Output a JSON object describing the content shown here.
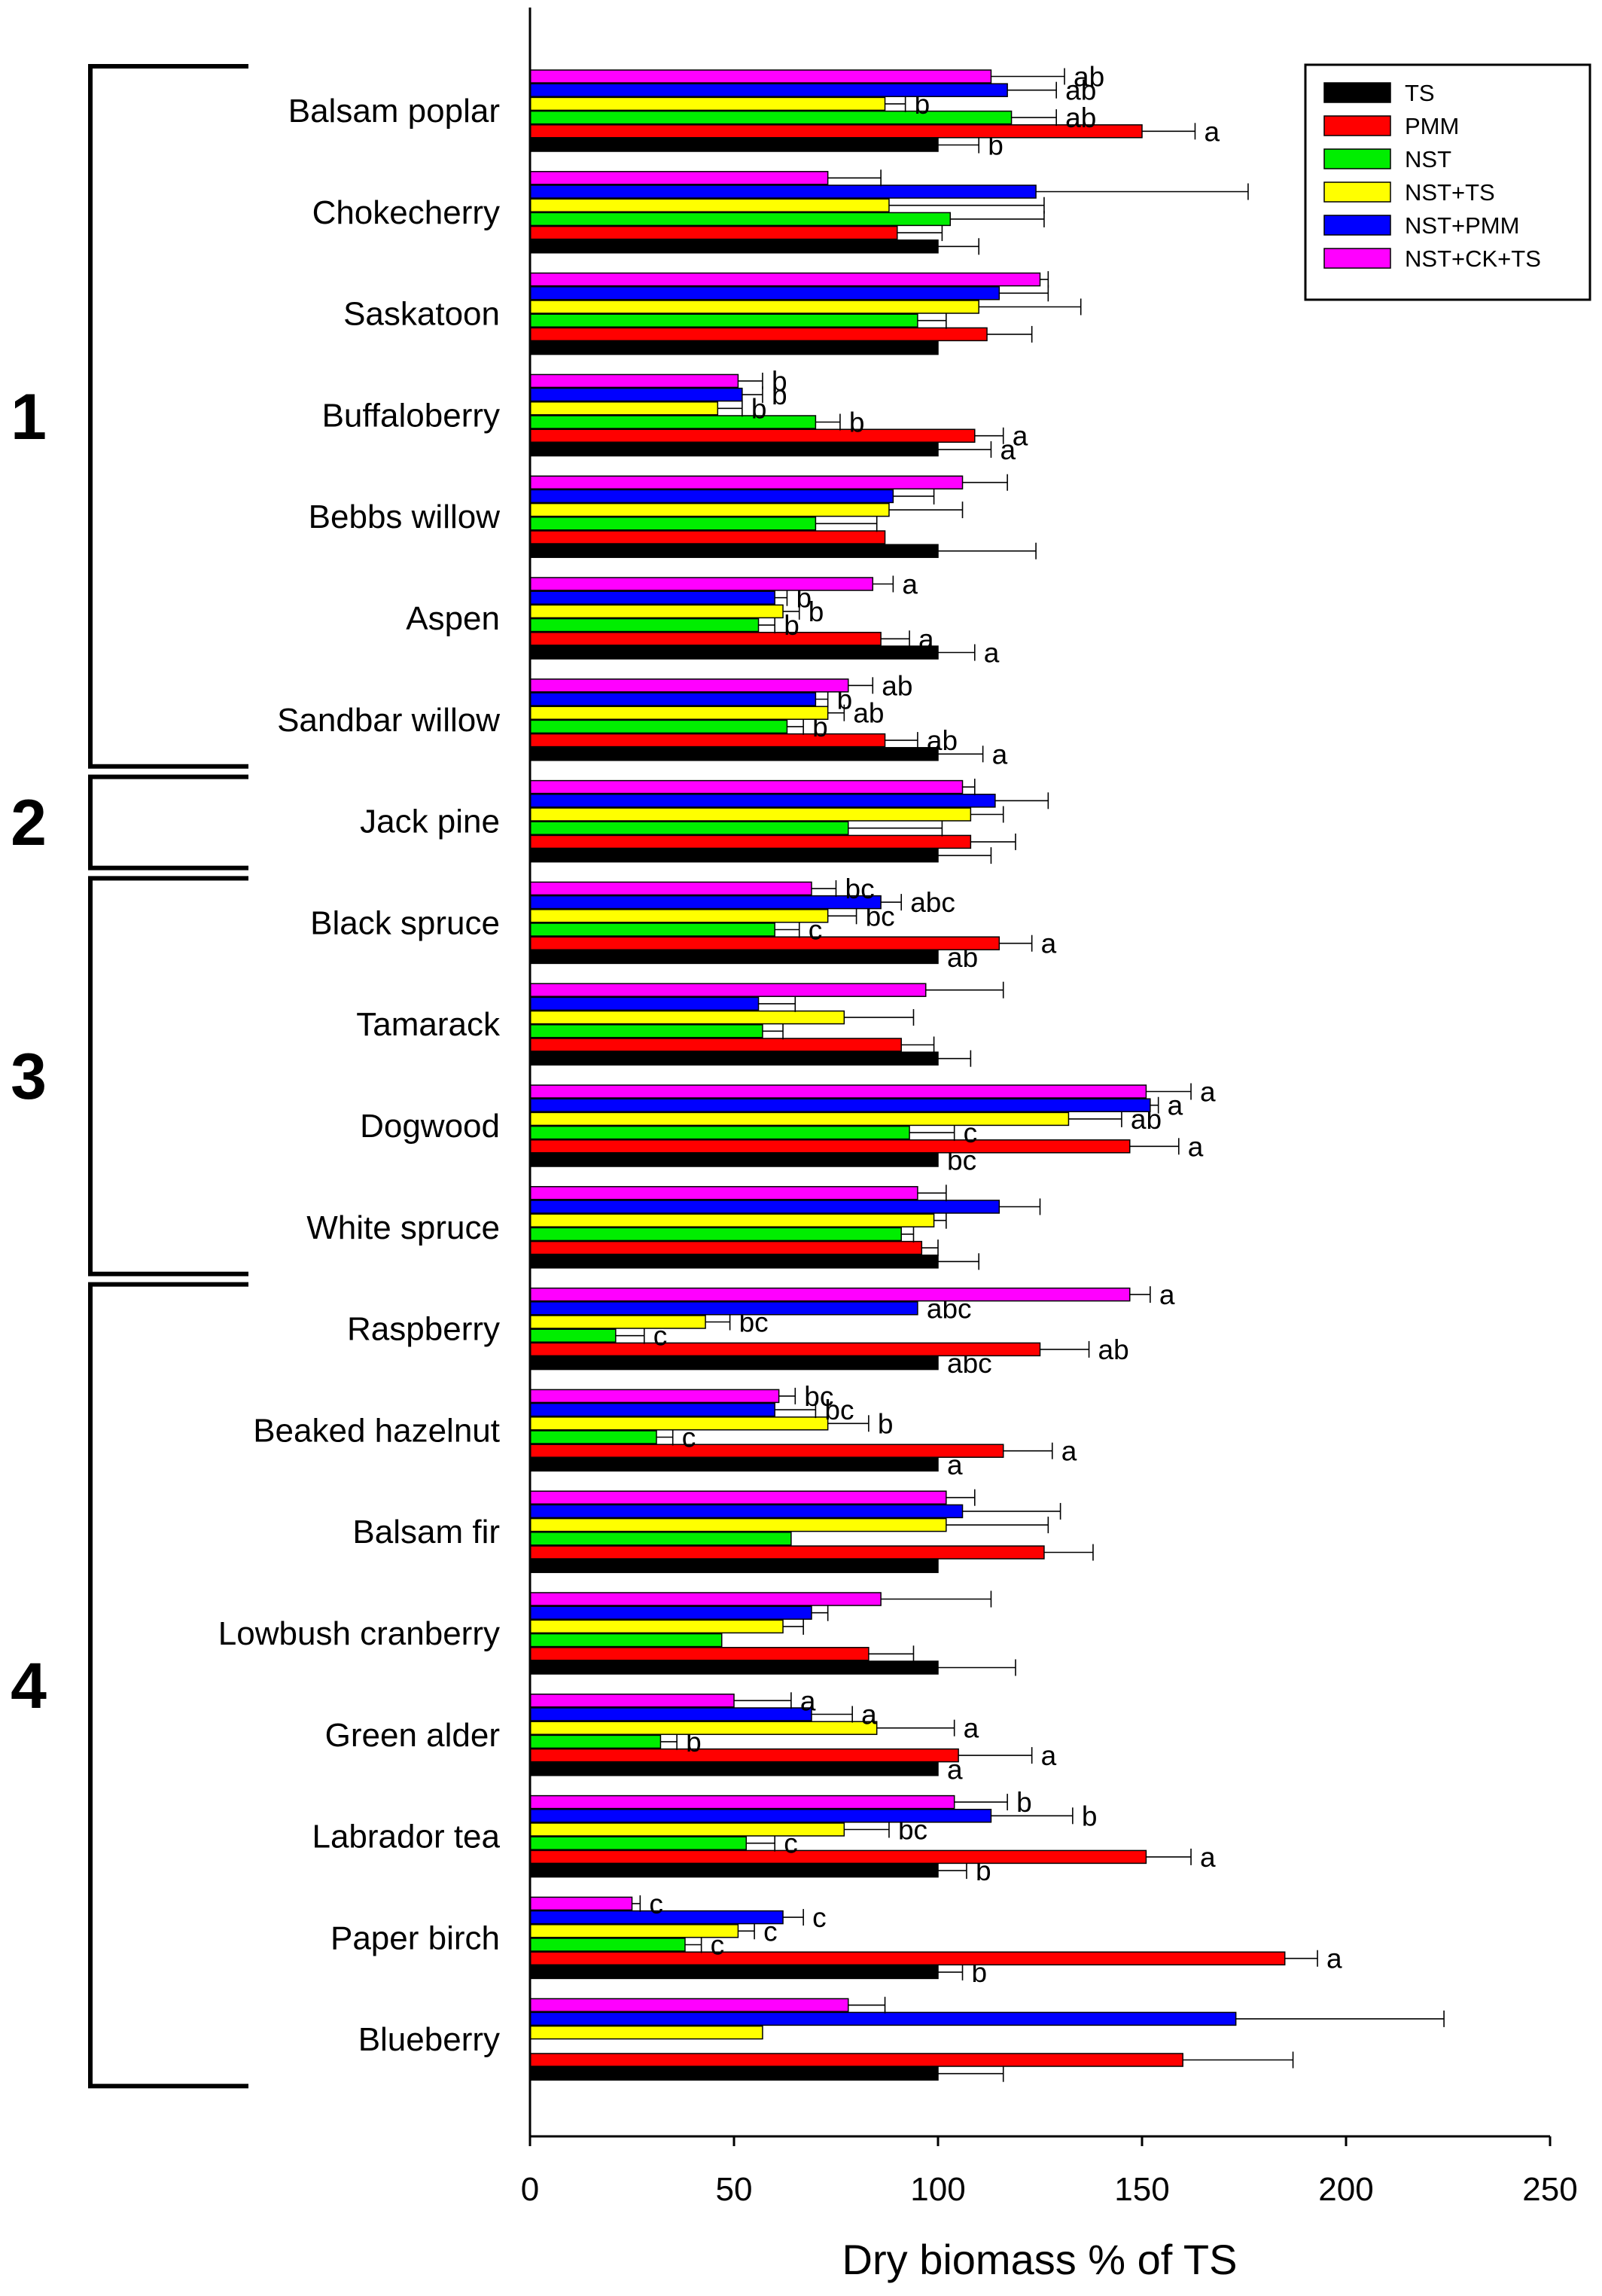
{
  "chart_data": {
    "type": "bar",
    "orientation": "horizontal",
    "xlabel": "Dry biomass % of TS",
    "xlim": [
      0,
      250
    ],
    "xticks": [
      "0",
      "50",
      "100",
      "150",
      "200",
      "250"
    ],
    "legend_position": "top-right",
    "series": [
      {
        "name": "TS",
        "color": "#000000"
      },
      {
        "name": "PMM",
        "color": "#ff0000"
      },
      {
        "name": "NST",
        "color": "#00ee00"
      },
      {
        "name": "NST+TS",
        "color": "#ffff00"
      },
      {
        "name": "NST+PMM",
        "color": "#0000ff"
      },
      {
        "name": "NST+CK+TS",
        "color": "#ff00ff"
      }
    ],
    "groups": [
      {
        "label": "1",
        "start": 0,
        "end": 6
      },
      {
        "label": "2",
        "start": 7,
        "end": 7
      },
      {
        "label": "3",
        "start": 8,
        "end": 11
      },
      {
        "label": "4",
        "start": 12,
        "end": 19
      }
    ],
    "categories": [
      {
        "name": "Balsam poplar",
        "values": [
          100,
          150,
          118,
          87,
          117,
          113
        ],
        "errors": [
          10,
          13,
          11,
          5,
          12,
          18
        ],
        "letters": [
          "b",
          "a",
          "ab",
          "b",
          "ab",
          "ab"
        ]
      },
      {
        "name": "Chokecherry",
        "values": [
          100,
          90,
          103,
          88,
          124,
          73
        ],
        "errors": [
          10,
          11,
          23,
          38,
          52,
          13
        ],
        "letters": [
          "",
          "",
          "",
          "",
          "",
          ""
        ]
      },
      {
        "name": "Saskatoon",
        "values": [
          100,
          112,
          95,
          110,
          115,
          125
        ],
        "errors": [
          0,
          11,
          7,
          25,
          12,
          2
        ],
        "letters": [
          "",
          "",
          "",
          "",
          "",
          ""
        ]
      },
      {
        "name": "Buffaloberry",
        "values": [
          100,
          109,
          70,
          46,
          52,
          51
        ],
        "errors": [
          13,
          7,
          6,
          6,
          5,
          6
        ],
        "letters": [
          "a",
          "a",
          "b",
          "b",
          "b",
          "b"
        ]
      },
      {
        "name": "Bebbs willow",
        "values": [
          100,
          87,
          70,
          88,
          89,
          106
        ],
        "errors": [
          24,
          0,
          15,
          18,
          10,
          11
        ],
        "letters": [
          "",
          "",
          "",
          "",
          "",
          ""
        ]
      },
      {
        "name": "Aspen",
        "values": [
          100,
          86,
          56,
          62,
          60,
          84
        ],
        "errors": [
          9,
          7,
          4,
          4,
          3,
          5
        ],
        "letters": [
          "a",
          "a",
          "b",
          "b",
          "b",
          "a"
        ]
      },
      {
        "name": "Sandbar willow",
        "values": [
          100,
          87,
          63,
          73,
          70,
          78
        ],
        "errors": [
          11,
          8,
          4,
          4,
          3,
          6
        ],
        "letters": [
          "a",
          "ab",
          "b",
          "ab",
          "b",
          "ab"
        ]
      },
      {
        "name": "Jack pine",
        "values": [
          100,
          108,
          78,
          108,
          114,
          106
        ],
        "errors": [
          13,
          11,
          23,
          8,
          13,
          3
        ],
        "letters": [
          "",
          "",
          "",
          "",
          "",
          ""
        ]
      },
      {
        "name": "Black spruce",
        "values": [
          100,
          115,
          60,
          73,
          86,
          69
        ],
        "errors": [
          0,
          8,
          6,
          7,
          5,
          6
        ],
        "letters": [
          "ab",
          "a",
          "c",
          "bc",
          "abc",
          "bc"
        ]
      },
      {
        "name": "Tamarack",
        "values": [
          100,
          91,
          57,
          77,
          56,
          97
        ],
        "errors": [
          8,
          8,
          5,
          17,
          9,
          19
        ],
        "letters": [
          "",
          "",
          "",
          "",
          "",
          ""
        ]
      },
      {
        "name": "Dogwood",
        "values": [
          100,
          147,
          93,
          132,
          152,
          151
        ],
        "errors": [
          0,
          12,
          11,
          13,
          2,
          11
        ],
        "letters": [
          "bc",
          "a",
          "c",
          "ab",
          "a",
          "a"
        ]
      },
      {
        "name": "White spruce",
        "values": [
          100,
          96,
          91,
          99,
          115,
          95
        ],
        "errors": [
          10,
          4,
          3,
          3,
          10,
          7
        ],
        "letters": [
          "",
          "",
          "",
          "",
          "",
          ""
        ]
      },
      {
        "name": "Raspberry",
        "values": [
          100,
          125,
          21,
          43,
          95,
          147
        ],
        "errors": [
          0,
          12,
          7,
          6,
          0,
          5
        ],
        "letters": [
          "abc",
          "ab",
          "c",
          "bc",
          "abc",
          "a"
        ]
      },
      {
        "name": "Beaked hazelnut",
        "values": [
          100,
          116,
          31,
          73,
          60,
          61
        ],
        "errors": [
          0,
          12,
          4,
          10,
          10,
          4
        ],
        "letters": [
          "a",
          "a",
          "c",
          "b",
          "bc",
          "bc"
        ]
      },
      {
        "name": "Balsam fir",
        "values": [
          100,
          126,
          64,
          102,
          106,
          102
        ],
        "errors": [
          0,
          12,
          0,
          25,
          24,
          7
        ],
        "letters": [
          "",
          "",
          "",
          "",
          "",
          ""
        ]
      },
      {
        "name": "Lowbush cranberry",
        "values": [
          100,
          83,
          47,
          62,
          69,
          86
        ],
        "errors": [
          19,
          11,
          0,
          5,
          4,
          27
        ],
        "letters": [
          "",
          "",
          "",
          "",
          "",
          ""
        ]
      },
      {
        "name": "Green alder",
        "values": [
          100,
          105,
          32,
          85,
          69,
          50
        ],
        "errors": [
          0,
          18,
          4,
          19,
          10,
          14
        ],
        "letters": [
          "a",
          "a",
          "b",
          "a",
          "a",
          "a"
        ]
      },
      {
        "name": "Labrador tea",
        "values": [
          100,
          151,
          53,
          77,
          113,
          104
        ],
        "errors": [
          7,
          11,
          7,
          11,
          20,
          13
        ],
        "letters": [
          "b",
          "a",
          "c",
          "bc",
          "b",
          "b"
        ]
      },
      {
        "name": "Paper birch",
        "values": [
          100,
          185,
          38,
          51,
          62,
          25
        ],
        "errors": [
          6,
          8,
          4,
          4,
          5,
          2
        ],
        "letters": [
          "b",
          "a",
          "c",
          "c",
          "c",
          "c"
        ]
      },
      {
        "name": "Blueberry",
        "values": [
          100,
          160,
          0,
          57,
          173,
          78
        ],
        "errors": [
          16,
          27,
          0,
          0,
          51,
          9
        ],
        "letters": [
          "",
          "",
          "",
          "",
          "",
          ""
        ]
      }
    ]
  }
}
